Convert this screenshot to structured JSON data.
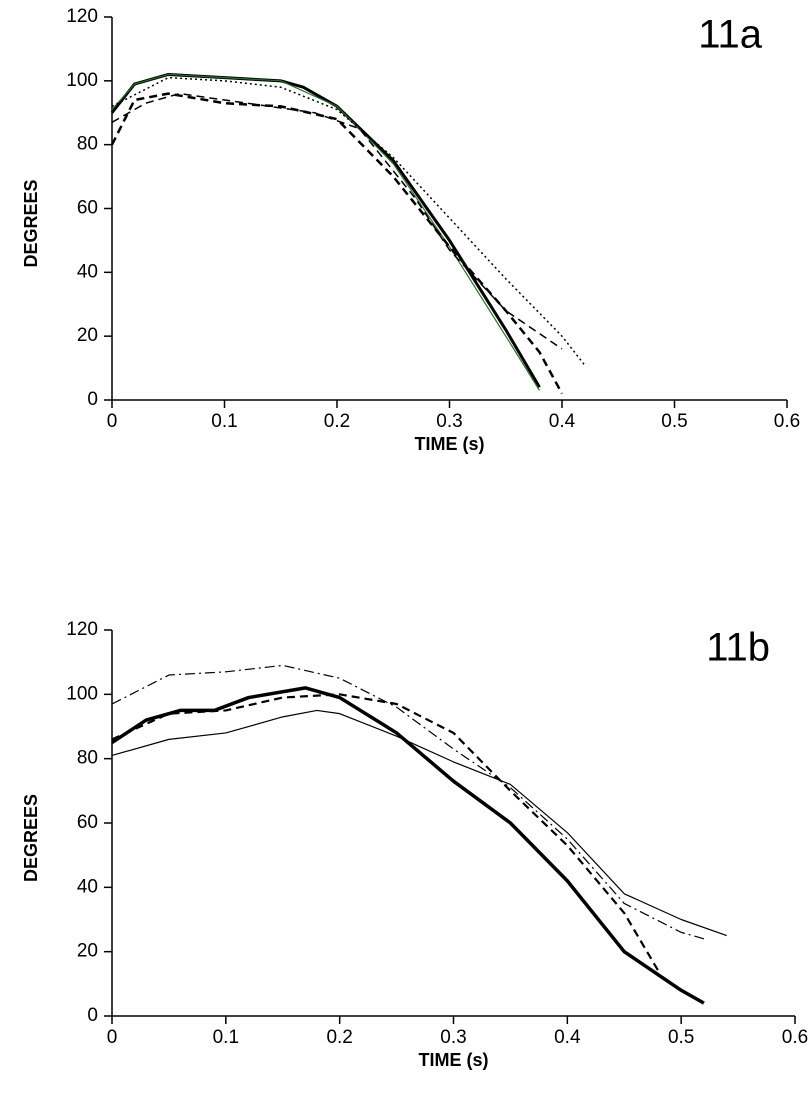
{
  "chart_data": [
    {
      "type": "line",
      "title": "11a",
      "x_label": "TIME (s)",
      "y_label": "DEGREES",
      "xlim": [
        0,
        0.6
      ],
      "xticks": [
        0,
        0.1,
        0.2,
        0.3,
        0.4,
        0.5,
        0.6
      ],
      "ylim": [
        0,
        120
      ],
      "yticks": [
        0,
        20,
        40,
        60,
        80,
        100,
        120
      ],
      "grid": false,
      "series": [
        {
          "color": "#000000",
          "style": "solid",
          "width": 3,
          "x": [
            0,
            0.02,
            0.05,
            0.1,
            0.15,
            0.17,
            0.2,
            0.25,
            0.3,
            0.35,
            0.38
          ],
          "values": [
            90,
            99,
            102,
            101,
            100,
            98,
            92,
            75,
            50,
            22,
            4
          ]
        },
        {
          "color": "#2e6b2e",
          "style": "solid",
          "width": 1.2,
          "x": [
            0,
            0.02,
            0.05,
            0.1,
            0.15,
            0.2,
            0.25,
            0.3,
            0.35,
            0.38
          ],
          "values": [
            91,
            99,
            102,
            101,
            100,
            92,
            74,
            48,
            20,
            3
          ]
        },
        {
          "color": "#000000",
          "style": "dotted",
          "width": 1.5,
          "x": [
            0,
            0.05,
            0.1,
            0.15,
            0.2,
            0.25,
            0.3,
            0.35,
            0.4,
            0.42
          ],
          "values": [
            92,
            101,
            100,
            98,
            91,
            76,
            57,
            38,
            20,
            11
          ]
        },
        {
          "color": "#000000",
          "style": "dashed",
          "width": 2.5,
          "x": [
            0,
            0.02,
            0.05,
            0.1,
            0.15,
            0.2,
            0.25,
            0.3,
            0.35,
            0.38,
            0.4
          ],
          "values": [
            80,
            94,
            96,
            93,
            92,
            88,
            70,
            48,
            28,
            15,
            2
          ]
        },
        {
          "color": "#000000",
          "style": "dashed",
          "width": 1.5,
          "x": [
            0,
            0.03,
            0.06,
            0.1,
            0.18,
            0.22,
            0.27,
            0.3,
            0.35,
            0.4
          ],
          "values": [
            87,
            93,
            96,
            94,
            90,
            85,
            63,
            47,
            28,
            16
          ]
        }
      ]
    },
    {
      "type": "line",
      "title": "11b",
      "x_label": "TIME (s)",
      "y_label": "DEGREES",
      "xlim": [
        0,
        0.6
      ],
      "xticks": [
        0,
        0.1,
        0.2,
        0.3,
        0.4,
        0.5,
        0.6
      ],
      "ylim": [
        0,
        120
      ],
      "yticks": [
        0,
        20,
        40,
        60,
        80,
        100,
        120
      ],
      "grid": false,
      "series": [
        {
          "color": "#000000",
          "style": "solid",
          "width": 3.5,
          "x": [
            0,
            0.03,
            0.06,
            0.09,
            0.12,
            0.17,
            0.2,
            0.25,
            0.3,
            0.35,
            0.4,
            0.45,
            0.5,
            0.52
          ],
          "values": [
            85,
            92,
            95,
            95,
            99,
            102,
            99,
            88,
            73,
            60,
            42,
            20,
            8,
            4
          ]
        },
        {
          "color": "#000000",
          "style": "solid",
          "width": 1.2,
          "x": [
            0,
            0.05,
            0.1,
            0.15,
            0.18,
            0.2,
            0.25,
            0.3,
            0.35,
            0.4,
            0.45,
            0.5,
            0.54
          ],
          "values": [
            81,
            86,
            88,
            93,
            95,
            94,
            87,
            79,
            72,
            57,
            38,
            30,
            25
          ]
        },
        {
          "color": "#000000",
          "style": "dashdot",
          "width": 1.2,
          "x": [
            0,
            0.05,
            0.1,
            0.15,
            0.2,
            0.25,
            0.3,
            0.35,
            0.4,
            0.45,
            0.5,
            0.52
          ],
          "values": [
            97,
            106,
            107,
            109,
            105,
            96,
            83,
            71,
            55,
            35,
            26,
            24
          ]
        },
        {
          "color": "#000000",
          "style": "dashed",
          "width": 2.2,
          "x": [
            0,
            0.05,
            0.1,
            0.15,
            0.2,
            0.25,
            0.3,
            0.35,
            0.4,
            0.45,
            0.48
          ],
          "values": [
            86,
            94,
            95,
            99,
            100,
            97,
            88,
            70,
            53,
            32,
            14
          ]
        }
      ]
    }
  ]
}
